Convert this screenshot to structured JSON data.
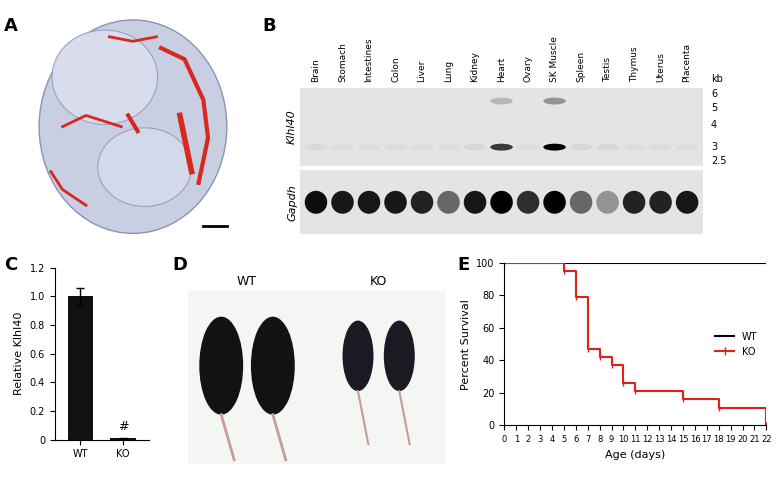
{
  "panel_labels": [
    "A",
    "B",
    "C",
    "D",
    "E"
  ],
  "panel_B": {
    "lanes": [
      "Brain",
      "Stomach",
      "Intestines",
      "Colon",
      "Liver",
      "Lung",
      "Kidney",
      "Heart",
      "Ovary",
      "SK Muscle",
      "Spleen",
      "Testis",
      "Thymus",
      "Uterus",
      "Placenta"
    ],
    "size_unit": "kb",
    "size_markers": [
      6,
      5,
      4,
      3,
      2.5
    ],
    "blots": [
      {
        "probe": "Klhl40",
        "bands": [
          {
            "size": 5.5,
            "signal": [
              0,
              0,
              0,
              0,
              0,
              0,
              0,
              0.2,
              0,
              0.35,
              0,
              0,
              0,
              0,
              0
            ]
          },
          {
            "size": 3,
            "signal": [
              0.05,
              0.03,
              0.03,
              0.03,
              0.03,
              0.03,
              0.05,
              0.75,
              0.03,
              1.0,
              0.05,
              0.05,
              0.03,
              0.03,
              0.03
            ]
          }
        ]
      },
      {
        "probe": "Gapdh",
        "bands": [
          {
            "signal": [
              0.95,
              0.9,
              0.9,
              0.9,
              0.85,
              0.55,
              0.9,
              1.0,
              0.8,
              1.0,
              0.55,
              0.35,
              0.85,
              0.85,
              0.9
            ]
          }
        ]
      }
    ]
  },
  "panel_D": {
    "labels": [
      "WT",
      "KO"
    ]
  },
  "chart_data": [
    {
      "type": "bar",
      "categories": [
        "WT",
        "KO"
      ],
      "values": [
        1.0,
        0.01
      ],
      "errors": [
        0.06,
        0.005
      ],
      "color": "#111111",
      "y_label": "Relative Klhl40",
      "ylim": [
        0,
        1.2
      ],
      "yticks": [
        0,
        0.2,
        0.4,
        0.6,
        0.8,
        1.0,
        1.2
      ],
      "annotations": [
        {
          "text": "#",
          "category": "KO"
        }
      ]
    },
    {
      "type": "line",
      "x_label": "Age (days)",
      "y_label": "Percent Survival",
      "xlim": [
        0,
        22
      ],
      "xticks": [
        0,
        1,
        2,
        3,
        4,
        5,
        6,
        7,
        8,
        9,
        10,
        11,
        12,
        13,
        14,
        15,
        16,
        17,
        18,
        19,
        20,
        21,
        22
      ],
      "ylim": [
        0,
        100
      ],
      "yticks": [
        0,
        20,
        40,
        60,
        80,
        100
      ],
      "legend": "center right",
      "series": [
        {
          "name": "WT",
          "color": "#000000",
          "line_style": "steps",
          "x": [
            0,
            22
          ],
          "values": [
            100,
            100
          ]
        },
        {
          "name": "KO",
          "color": "#e0201b",
          "line_style": "steps",
          "marker": "tick",
          "x": [
            0,
            5,
            6,
            7,
            8,
            9,
            10,
            11,
            15,
            18,
            22
          ],
          "values": [
            100,
            95,
            79,
            47,
            42,
            37,
            26,
            21,
            16,
            10.5,
            0
          ]
        }
      ]
    }
  ]
}
